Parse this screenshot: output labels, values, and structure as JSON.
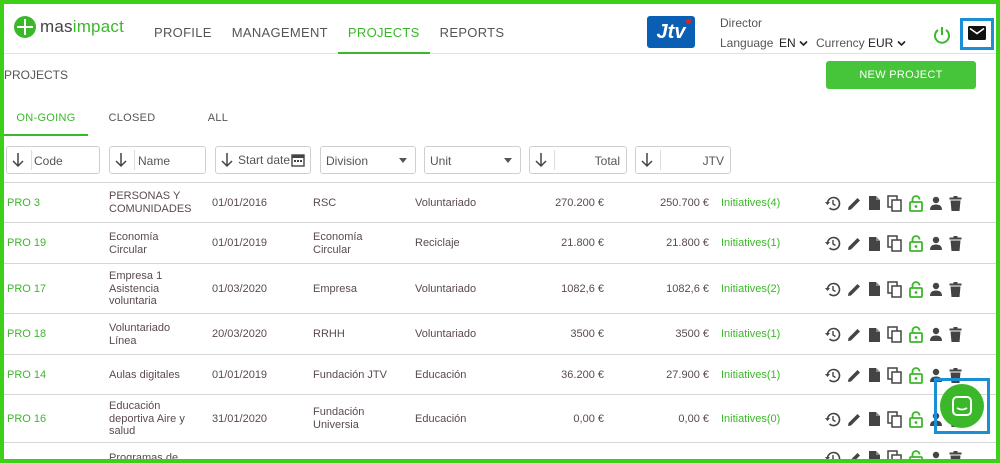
{
  "header": {
    "logo_prefix": "mas",
    "logo_suffix": "impact",
    "nav": [
      {
        "label": "PROFILE",
        "active": false
      },
      {
        "label": "MANAGEMENT",
        "active": false
      },
      {
        "label": "PROJECTS",
        "active": true
      },
      {
        "label": "REPORTS",
        "active": false
      }
    ],
    "brand_logo": "Jtv",
    "role": "Director",
    "language_label": "Language",
    "language_value": "EN",
    "currency_label": "Currency",
    "currency_value": "EUR"
  },
  "page": {
    "title": "PROJECTS",
    "new_button": "NEW PROJECT",
    "tabs": [
      {
        "label": "ON-GOING",
        "active": true
      },
      {
        "label": "CLOSED",
        "active": false
      },
      {
        "label": "ALL",
        "active": false
      }
    ]
  },
  "filters": {
    "code": "Code",
    "name": "Name",
    "start_date": "Start date",
    "division": "Division",
    "unit": "Unit",
    "total": "Total",
    "jtv": "JTV"
  },
  "rows": [
    {
      "code": "PRO 3",
      "name": "PERSONAS Y COMUNIDADES",
      "date": "01/01/2016",
      "division": "RSC",
      "unit": "Voluntariado",
      "total": "270.200 €",
      "jtv": "250.700 €",
      "initiatives": "Initiatives(4)"
    },
    {
      "code": "PRO 19",
      "name": "Economía Circular",
      "date": "01/01/2019",
      "division": "Economía Circular",
      "unit": "Reciclaje",
      "total": "21.800 €",
      "jtv": "21.800 €",
      "initiatives": "Initiatives(1)"
    },
    {
      "code": "PRO 17",
      "name": "Empresa 1 Asistencia voluntaria",
      "date": "01/03/2020",
      "division": "Empresa",
      "unit": "Voluntariado",
      "total": "1082,6 €",
      "jtv": "1082,6 €",
      "initiatives": "Initiatives(2)"
    },
    {
      "code": "PRO 18",
      "name": "Voluntariado Línea",
      "date": "20/03/2020",
      "division": "RRHH",
      "unit": "Voluntariado",
      "total": "3500 €",
      "jtv": "3500 €",
      "initiatives": "Initiatives(1)"
    },
    {
      "code": "PRO 14",
      "name": "Aulas digitales",
      "date": "01/01/2019",
      "division": "Fundación JTV",
      "unit": "Educación",
      "total": "36.200 €",
      "jtv": "27.900 €",
      "initiatives": "Initiatives(1)"
    },
    {
      "code": "PRO 16",
      "name": "Educación deportiva Aire y salud",
      "date": "31/01/2020",
      "division": "Fundación Universia",
      "unit": "Educación",
      "total": "0,00 €",
      "jtv": "0,00 €",
      "initiatives": "Initiatives(0)"
    },
    {
      "code": "",
      "name": "Programas de",
      "date": "",
      "division": "",
      "unit": "",
      "total": "",
      "jtv": "",
      "initiatives": ""
    }
  ],
  "colors": {
    "accent": "#3bb82a",
    "highlight_border": "#1b8fd6",
    "frame": "#3ecf1a"
  }
}
